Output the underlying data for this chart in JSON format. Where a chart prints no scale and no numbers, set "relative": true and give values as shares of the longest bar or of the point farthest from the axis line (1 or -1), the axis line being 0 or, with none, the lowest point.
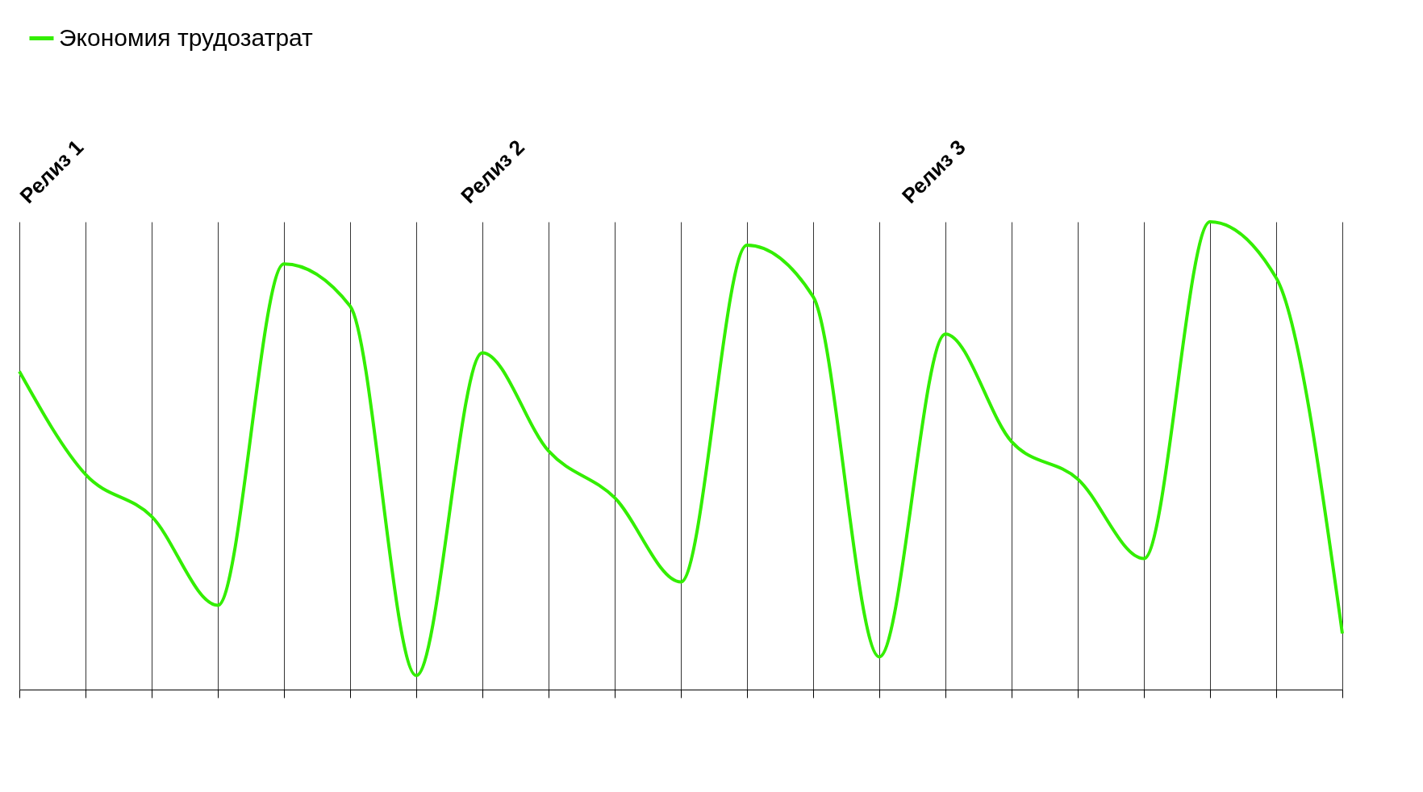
{
  "chart_data": {
    "type": "line",
    "relative": true,
    "categories": [
      null,
      null,
      null,
      null,
      null,
      null,
      null,
      null,
      null,
      null,
      null,
      null,
      null,
      null,
      null,
      null,
      null,
      null,
      null,
      null,
      null
    ],
    "series": [
      {
        "name": "Экономия трудозатрат",
        "color": "#33ee00",
        "values": [
          0.68,
          0.46,
          0.37,
          0.18,
          0.91,
          0.82,
          0.03,
          0.72,
          0.51,
          0.41,
          0.23,
          0.95,
          0.84,
          0.07,
          0.76,
          0.53,
          0.45,
          0.28,
          1,
          0.88,
          0.12
        ]
      }
    ],
    "annotations": [
      "Релиз 1",
      "Релиз 2",
      "Релиз 3"
    ],
    "grid": "x",
    "legend": "top",
    "tick_labels": false,
    "marker": "none",
    "line_style": "solid"
  }
}
